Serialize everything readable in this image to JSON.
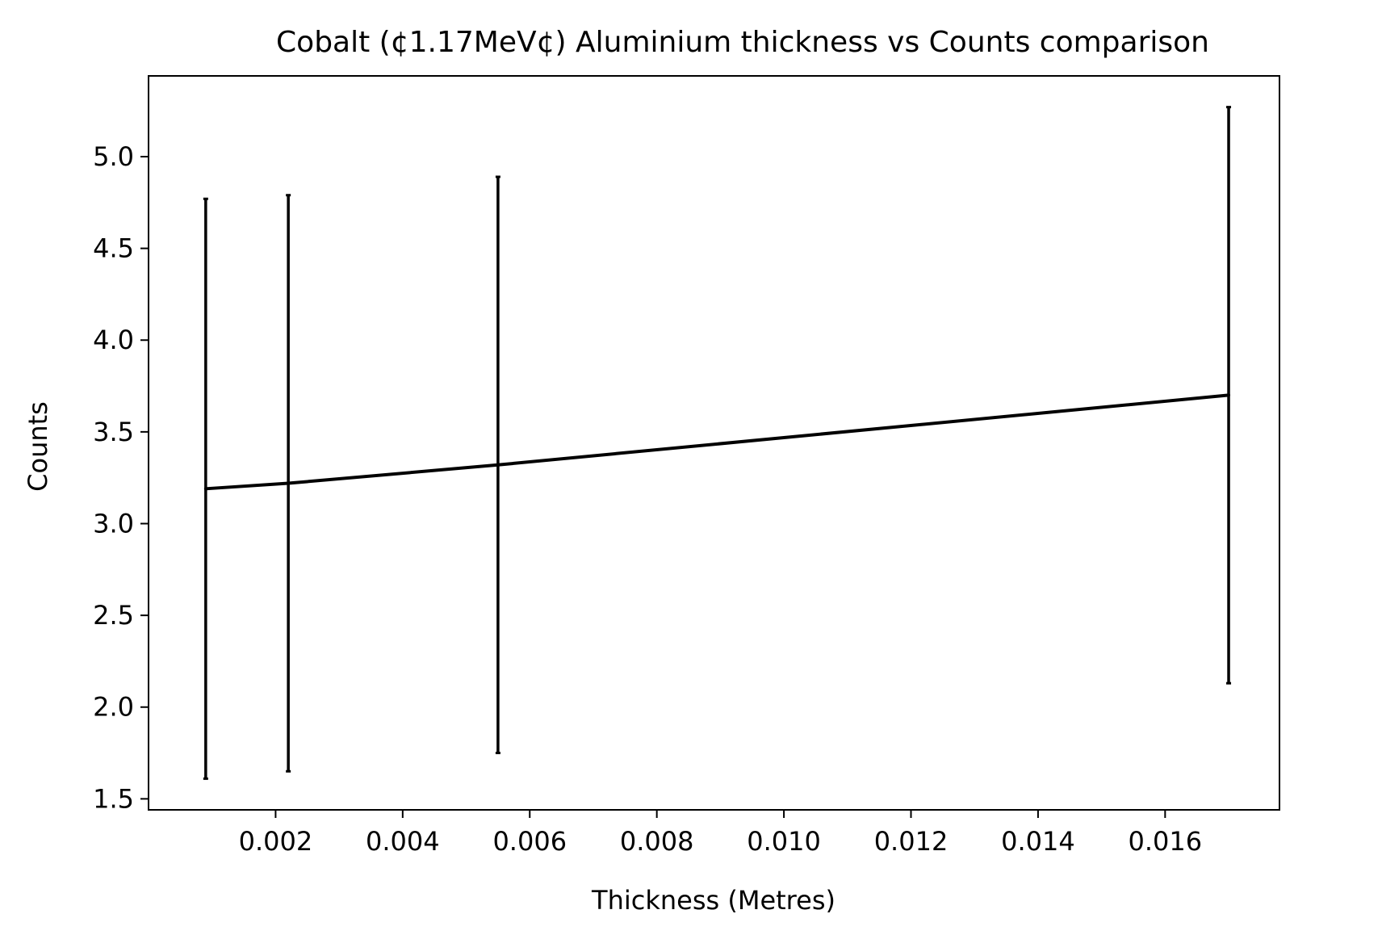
{
  "chart_data": {
    "type": "line",
    "title": "Cobalt (¢1.17MeV¢) Aluminium thickness vs Counts comparison",
    "xlabel": "Thickness (Metres)",
    "ylabel": "Counts",
    "xlim": [
      0.0,
      0.0178
    ],
    "ylim": [
      1.44,
      5.44
    ],
    "x_ticks": [
      0.002,
      0.004,
      0.006,
      0.008,
      0.01,
      0.012,
      0.014,
      0.016
    ],
    "x_tick_labels": [
      "0.002",
      "0.004",
      "0.006",
      "0.008",
      "0.010",
      "0.012",
      "0.014",
      "0.016"
    ],
    "y_ticks": [
      1.5,
      2.0,
      2.5,
      3.0,
      3.5,
      4.0,
      4.5,
      5.0
    ],
    "y_tick_labels": [
      "1.5",
      "2.0",
      "2.5",
      "3.0",
      "3.5",
      "4.0",
      "4.5",
      "5.0"
    ],
    "grid": false,
    "legend": "none",
    "series": [
      {
        "x": [
          0.0009,
          0.0022,
          0.0055,
          0.017
        ],
        "y": [
          3.19,
          3.22,
          3.32,
          3.7
        ],
        "yerr_low": [
          1.61,
          1.65,
          1.75,
          2.13
        ],
        "yerr_high": [
          4.77,
          4.79,
          4.89,
          5.27
        ],
        "color": "#000000"
      }
    ]
  }
}
